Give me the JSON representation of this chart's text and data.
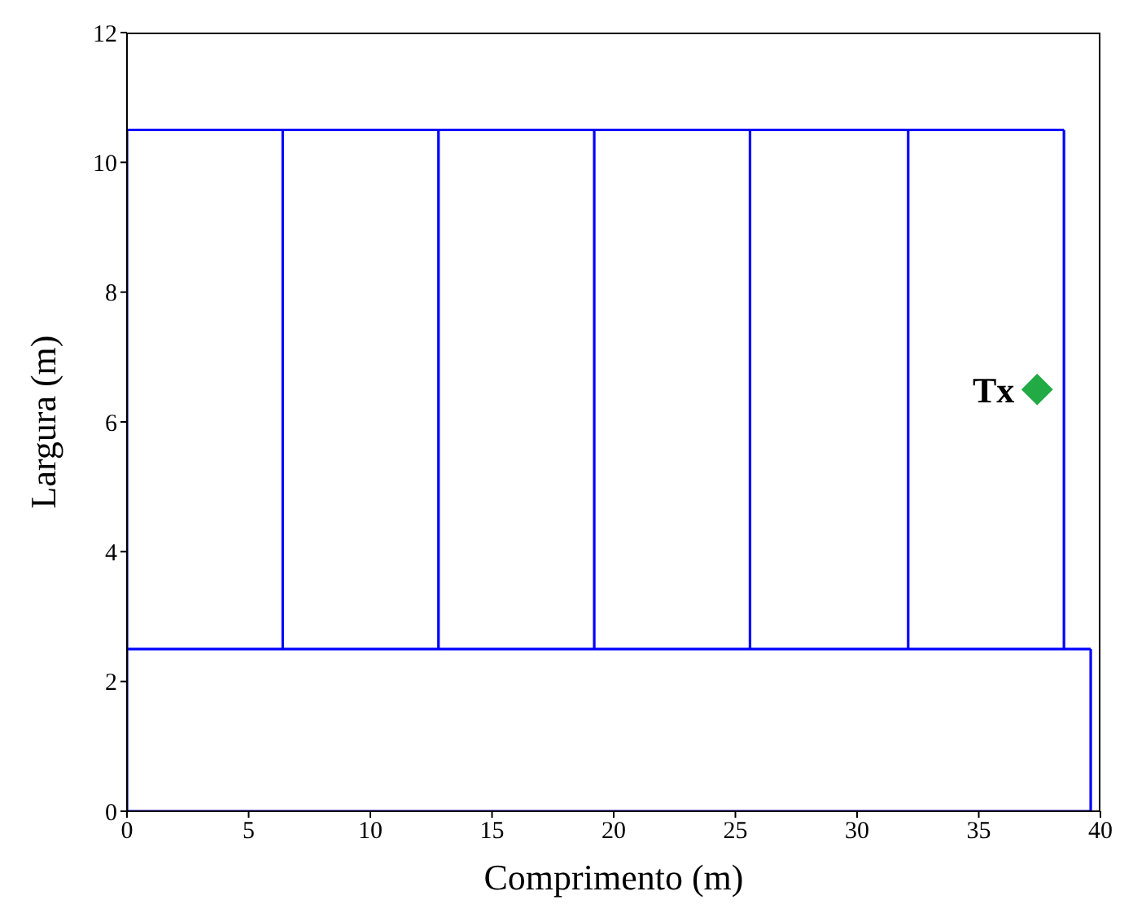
{
  "chart_data": {
    "type": "line",
    "xlabel": "Comprimento (m)",
    "ylabel": "Largura (m)",
    "xlim": [
      0,
      40
    ],
    "xticks": [
      0,
      5,
      10,
      15,
      20,
      25,
      30,
      35,
      40
    ],
    "ylim": [
      0,
      12
    ],
    "yticks": [
      0,
      2,
      4,
      6,
      8,
      10,
      12
    ],
    "marker": "none",
    "line_style": "solid",
    "series": [
      {
        "color": "#0000ff",
        "x": [
          0,
          38.5
        ],
        "values": [
          10.5,
          10.5
        ]
      },
      {
        "color": "#0000ff",
        "x": [
          0,
          39.6
        ],
        "values": [
          2.5,
          2.5
        ]
      },
      {
        "color": "#0000ff",
        "x": [
          0,
          39.6
        ],
        "values": [
          0,
          0
        ]
      },
      {
        "color": "#0000ff",
        "x": [
          0,
          0
        ],
        "values": [
          0,
          10.5
        ]
      },
      {
        "color": "#0000ff",
        "x": [
          6.4,
          6.4
        ],
        "values": [
          2.5,
          10.5
        ]
      },
      {
        "color": "#0000ff",
        "x": [
          12.8,
          12.8
        ],
        "values": [
          2.5,
          10.5
        ]
      },
      {
        "color": "#0000ff",
        "x": [
          19.2,
          19.2
        ],
        "values": [
          2.5,
          10.5
        ]
      },
      {
        "color": "#0000ff",
        "x": [
          25.6,
          25.6
        ],
        "values": [
          2.5,
          10.5
        ]
      },
      {
        "color": "#0000ff",
        "x": [
          32.1,
          32.1
        ],
        "values": [
          2.5,
          10.5
        ]
      },
      {
        "color": "#0000ff",
        "x": [
          38.5,
          38.5
        ],
        "values": [
          2.5,
          10.5
        ]
      },
      {
        "color": "#0000ff",
        "x": [
          39.6,
          39.6
        ],
        "values": [
          0,
          2.5
        ]
      },
      {
        "type": "scatter",
        "color": "#22aa44",
        "marker": "diamond",
        "x": [
          37.4
        ],
        "values": [
          6.5
        ]
      }
    ],
    "annotations": [
      {
        "text": "Tx",
        "x": 37.4,
        "y": 6.5
      }
    ]
  }
}
